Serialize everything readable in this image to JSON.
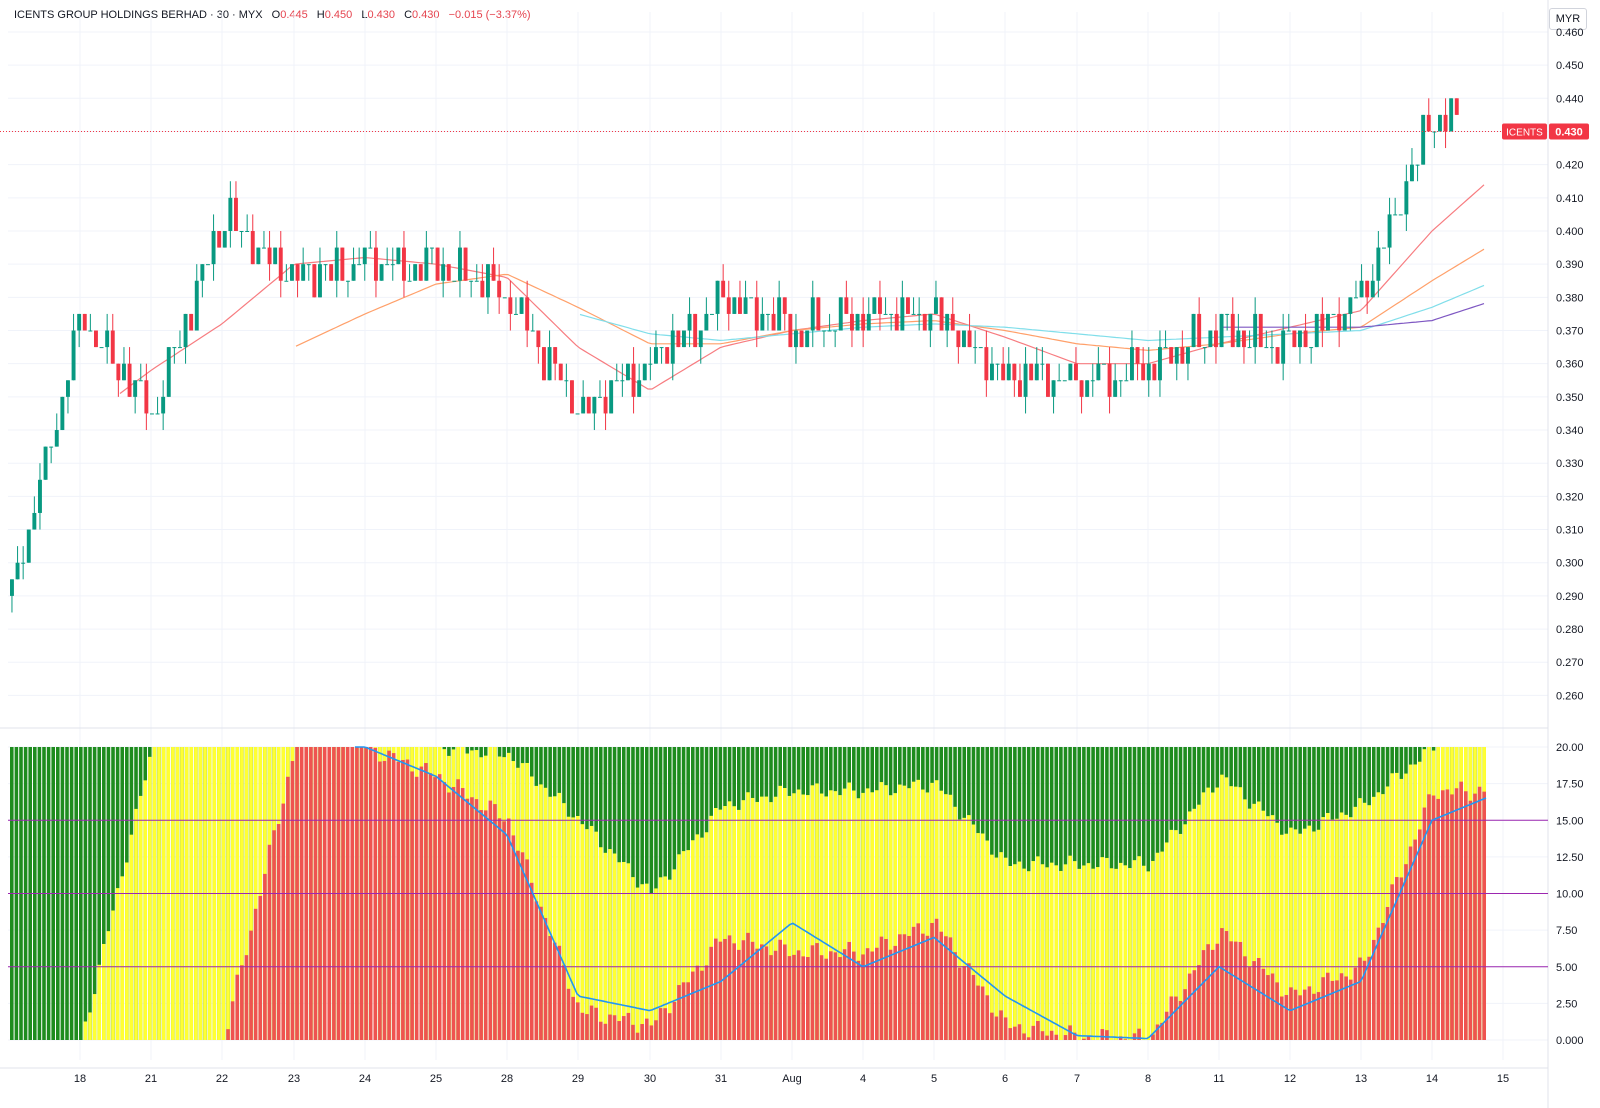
{
  "header": {
    "symbol_line": "ICENTS GROUP HOLDINGS BERHAD · 30 · MYX",
    "o_label": "O",
    "o_value": "0.445",
    "h_label": "H",
    "h_value": "0.450",
    "l_label": "L",
    "l_value": "0.430",
    "c_label": "C",
    "c_value": "0.430",
    "change": "−0.015 (−3.37%)",
    "currency_button": "MYR"
  },
  "price_tag": {
    "ticker": "ICENTS",
    "value": "0.430",
    "color": "#f23645"
  },
  "colors": {
    "up": "#089981",
    "down": "#f23645",
    "green_zone": "#1e8c1e",
    "yellow_zone": "#ffff33",
    "red_zone": "#ef5350",
    "level_line": "#9c27b0",
    "signal_line": "#2196f3",
    "ma1": "#f77c80",
    "ma2": "#ffa06a",
    "ma3": "#80deea",
    "ma4": "#7e57c2"
  },
  "chart_data": [
    {
      "type": "candlestick",
      "title": "ICENTS GROUP HOLDINGS BERHAD · 30 · MYX",
      "x_ticks": [
        "18",
        "21",
        "22",
        "23",
        "24",
        "25",
        "28",
        "29",
        "30",
        "31",
        "Aug",
        "4",
        "5",
        "6",
        "7",
        "8",
        "11",
        "12",
        "13",
        "14",
        "15"
      ],
      "y_ticks": [
        "0.460",
        "0.450",
        "0.440",
        "0.430",
        "0.420",
        "0.410",
        "0.400",
        "0.390",
        "0.380",
        "0.370",
        "0.360",
        "0.350",
        "0.340",
        "0.330",
        "0.320",
        "0.310",
        "0.300",
        "0.290",
        "0.280",
        "0.270",
        "0.260"
      ],
      "ylim": [
        0.255,
        0.463
      ],
      "last_price": 0.43,
      "grid": true,
      "daily_closes": [
        {
          "day": "18",
          "close": 0.375
        },
        {
          "day": "21",
          "close": 0.345
        },
        {
          "day": "22",
          "close": 0.405
        },
        {
          "day": "23",
          "close": 0.385
        },
        {
          "day": "24",
          "close": 0.39
        },
        {
          "day": "25",
          "close": 0.39
        },
        {
          "day": "28",
          "close": 0.38
        },
        {
          "day": "29",
          "close": 0.345
        },
        {
          "day": "30",
          "close": 0.36
        },
        {
          "day": "31",
          "close": 0.38
        },
        {
          "day": "Aug",
          "close": 0.37
        },
        {
          "day": "4",
          "close": 0.375
        },
        {
          "day": "5",
          "close": 0.375
        },
        {
          "day": "6",
          "close": 0.355
        },
        {
          "day": "7",
          "close": 0.355
        },
        {
          "day": "8",
          "close": 0.36
        },
        {
          "day": "11",
          "close": 0.37
        },
        {
          "day": "12",
          "close": 0.365
        },
        {
          "day": "13",
          "close": 0.38
        },
        {
          "day": "14",
          "close": 0.435
        },
        {
          "day": "15",
          "close": 0.43
        }
      ],
      "moving_averages": [
        {
          "color_key": "ma1",
          "values": [
            0.342,
            0.358,
            0.372,
            0.39,
            0.392,
            0.39,
            0.386,
            0.365,
            0.352,
            0.365,
            0.37,
            0.373,
            0.375,
            0.368,
            0.36,
            0.36,
            0.366,
            0.371,
            0.376,
            0.4,
            0.419
          ]
        },
        {
          "color_key": "ma2",
          "values": [
            null,
            null,
            null,
            0.365,
            0.375,
            0.384,
            0.387,
            0.377,
            0.366,
            0.366,
            0.37,
            0.372,
            0.373,
            0.37,
            0.366,
            0.364,
            0.366,
            0.369,
            0.371,
            0.385,
            0.398
          ]
        },
        {
          "color_key": "ma3",
          "values": [
            null,
            null,
            null,
            null,
            null,
            null,
            null,
            0.375,
            0.369,
            0.367,
            0.369,
            0.371,
            0.372,
            0.371,
            0.369,
            0.367,
            0.368,
            0.369,
            0.37,
            0.377,
            0.386
          ]
        },
        {
          "color_key": "ma4",
          "values": [
            null,
            null,
            null,
            null,
            null,
            null,
            null,
            null,
            null,
            null,
            null,
            null,
            null,
            null,
            null,
            null,
            0.371,
            0.371,
            0.371,
            0.373,
            0.38
          ]
        }
      ]
    },
    {
      "type": "bar",
      "title": "",
      "y_ticks": [
        "20.00",
        "17.50",
        "15.00",
        "12.50",
        "10.00",
        "7.50",
        "5.00",
        "2.50",
        "0.000"
      ],
      "ylim": [
        0,
        20
      ],
      "levels": [
        15,
        10,
        5
      ],
      "series": [
        {
          "color_key": "red_zone",
          "daily_values": [
            0,
            0,
            0,
            20,
            20,
            18,
            15,
            2,
            1,
            7,
            6,
            6,
            8,
            1,
            0.2,
            0.1,
            7.5,
            3,
            5,
            17,
            17
          ]
        },
        {
          "color_key": "yellow_zone",
          "daily_values": [
            0,
            20,
            20,
            20,
            20,
            20,
            19.5,
            15,
            10,
            16,
            17,
            17,
            17.5,
            12,
            12,
            12,
            18,
            14,
            16,
            20,
            20
          ]
        },
        {
          "color_key": "signal_line",
          "daily_values": [
            null,
            null,
            null,
            null,
            20,
            18,
            14,
            3,
            2,
            4,
            8,
            5,
            7,
            3,
            0.3,
            0.1,
            5,
            2,
            4,
            15,
            17
          ]
        }
      ]
    }
  ]
}
